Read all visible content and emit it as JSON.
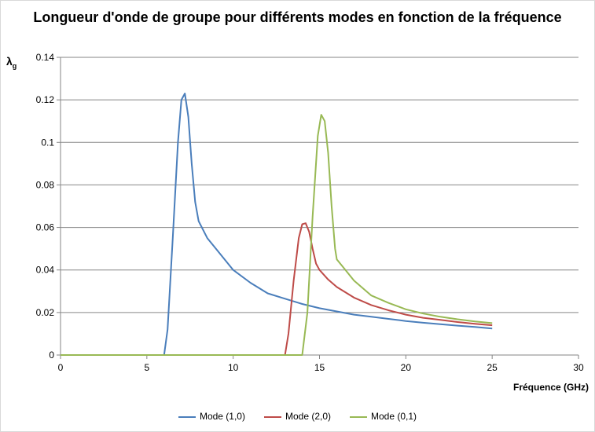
{
  "chart_data": {
    "type": "line",
    "title": "Longueur d'onde de groupe pour différents modes en fonction de la fréquence",
    "ylabel_main": "λ",
    "ylabel_sub": "g",
    "xlabel": "Fréquence  (GHz)",
    "xlim": [
      0,
      30
    ],
    "ylim": [
      0,
      0.14
    ],
    "xticks": [
      "0",
      "5",
      "10",
      "15",
      "20",
      "25",
      "30"
    ],
    "yticks": [
      "0",
      "0.02",
      "0.04",
      "0.06",
      "0.08",
      "0.1",
      "0.12",
      "0.14"
    ],
    "grid": "horizontal",
    "legend_position": "bottom",
    "series": [
      {
        "name": "Mode (1,0)",
        "color": "#4a7ebb",
        "points": [
          [
            0,
            0
          ],
          [
            6,
            0
          ],
          [
            6.2,
            0.012
          ],
          [
            6.5,
            0.055
          ],
          [
            6.8,
            0.1
          ],
          [
            7,
            0.12
          ],
          [
            7.2,
            0.123
          ],
          [
            7.4,
            0.112
          ],
          [
            7.6,
            0.09
          ],
          [
            7.8,
            0.072
          ],
          [
            8,
            0.063
          ],
          [
            8.5,
            0.055
          ],
          [
            9,
            0.05
          ],
          [
            10,
            0.04
          ],
          [
            11,
            0.034
          ],
          [
            12,
            0.029
          ],
          [
            13,
            0.0265
          ],
          [
            14,
            0.024
          ],
          [
            15,
            0.022
          ],
          [
            16,
            0.0205
          ],
          [
            17,
            0.019
          ],
          [
            18,
            0.018
          ],
          [
            19,
            0.017
          ],
          [
            20,
            0.016
          ],
          [
            21,
            0.0152
          ],
          [
            22,
            0.0145
          ],
          [
            23,
            0.0138
          ],
          [
            24,
            0.0132
          ],
          [
            25,
            0.0125
          ]
        ]
      },
      {
        "name": "Mode (2,0)",
        "color": "#be4b48",
        "points": [
          [
            0,
            0
          ],
          [
            13,
            0
          ],
          [
            13.2,
            0.01
          ],
          [
            13.5,
            0.035
          ],
          [
            13.8,
            0.055
          ],
          [
            14,
            0.0615
          ],
          [
            14.2,
            0.062
          ],
          [
            14.4,
            0.058
          ],
          [
            14.6,
            0.05
          ],
          [
            14.8,
            0.043
          ],
          [
            15,
            0.04
          ],
          [
            15.5,
            0.0355
          ],
          [
            16,
            0.032
          ],
          [
            17,
            0.027
          ],
          [
            18,
            0.0235
          ],
          [
            19,
            0.021
          ],
          [
            20,
            0.019
          ],
          [
            21,
            0.0175
          ],
          [
            22,
            0.0165
          ],
          [
            23,
            0.0155
          ],
          [
            24,
            0.0147
          ],
          [
            25,
            0.014
          ]
        ]
      },
      {
        "name": "Mode (0,1)",
        "color": "#98b954",
        "points": [
          [
            0,
            0
          ],
          [
            14,
            0
          ],
          [
            14.3,
            0.02
          ],
          [
            14.6,
            0.065
          ],
          [
            14.9,
            0.103
          ],
          [
            15.1,
            0.113
          ],
          [
            15.3,
            0.11
          ],
          [
            15.5,
            0.095
          ],
          [
            15.7,
            0.07
          ],
          [
            15.9,
            0.05
          ],
          [
            16,
            0.045
          ],
          [
            16.5,
            0.04
          ],
          [
            17,
            0.035
          ],
          [
            18,
            0.028
          ],
          [
            19,
            0.0245
          ],
          [
            20,
            0.0215
          ],
          [
            21,
            0.0195
          ],
          [
            22,
            0.018
          ],
          [
            23,
            0.0168
          ],
          [
            24,
            0.0158
          ],
          [
            25,
            0.015
          ]
        ]
      }
    ]
  }
}
